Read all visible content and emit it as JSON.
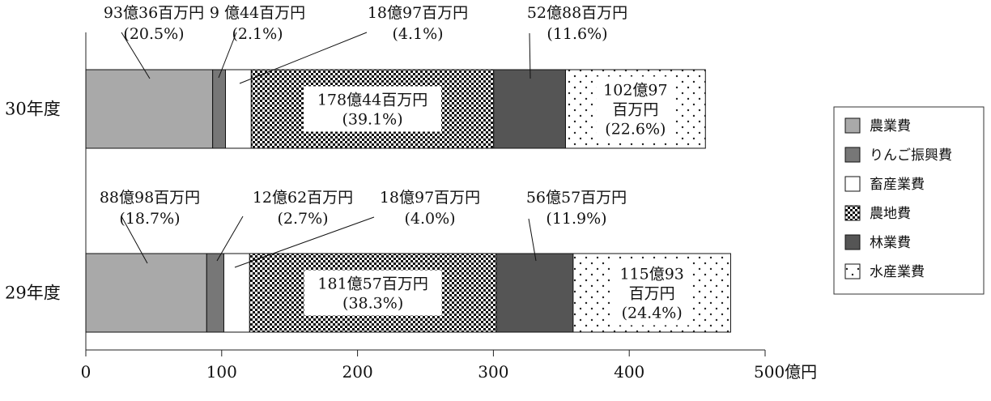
{
  "chart_data": {
    "type": "bar",
    "orientation": "horizontal",
    "stacked": true,
    "categories": [
      "30年度",
      "29年度"
    ],
    "series": [
      {
        "name": "農業費",
        "values": [
          93.36,
          88.98
        ],
        "color": "#a9a9a9",
        "pattern": "solid"
      },
      {
        "name": "りんご振興費",
        "values": [
          9.44,
          12.62
        ],
        "color": "#777777",
        "pattern": "solid"
      },
      {
        "name": "畜産業費",
        "values": [
          18.97,
          18.97
        ],
        "color": "#ffffff",
        "pattern": "solid"
      },
      {
        "name": "農地費",
        "values": [
          178.44,
          181.57
        ],
        "color": "#000000",
        "pattern": "checker"
      },
      {
        "name": "林業費",
        "values": [
          52.88,
          56.57
        ],
        "color": "#555555",
        "pattern": "solid"
      },
      {
        "name": "水産業費",
        "values": [
          102.97,
          115.93
        ],
        "color": "#000000",
        "pattern": "dots"
      }
    ],
    "data_labels": [
      [
        [
          "93億36百万円",
          "(20.5%)"
        ],
        [
          "9 億44百万円",
          "(2.1%)"
        ],
        [
          "18億97百万円",
          "(4.1%)"
        ],
        [
          "178億44百万円",
          "(39.1%)"
        ],
        [
          "52億88百万円",
          "(11.6%)"
        ],
        [
          "102億97",
          "百万円",
          "(22.6%)"
        ]
      ],
      [
        [
          "88億98百万円",
          "(18.7%)"
        ],
        [
          "12億62百万円",
          "(2.7%)"
        ],
        [
          "18億97百万円",
          "(4.0%)"
        ],
        [
          "181億57百万円",
          "(38.3%)"
        ],
        [
          "56億57百万円",
          "(11.9%)"
        ],
        [
          "115億93",
          "百万円",
          "(24.4%)"
        ]
      ]
    ],
    "x_ticks": [
      "0",
      "100",
      "200",
      "300",
      "400",
      "500億円"
    ],
    "xlim": [
      0,
      500
    ],
    "legend_position": "right",
    "grid": false
  }
}
